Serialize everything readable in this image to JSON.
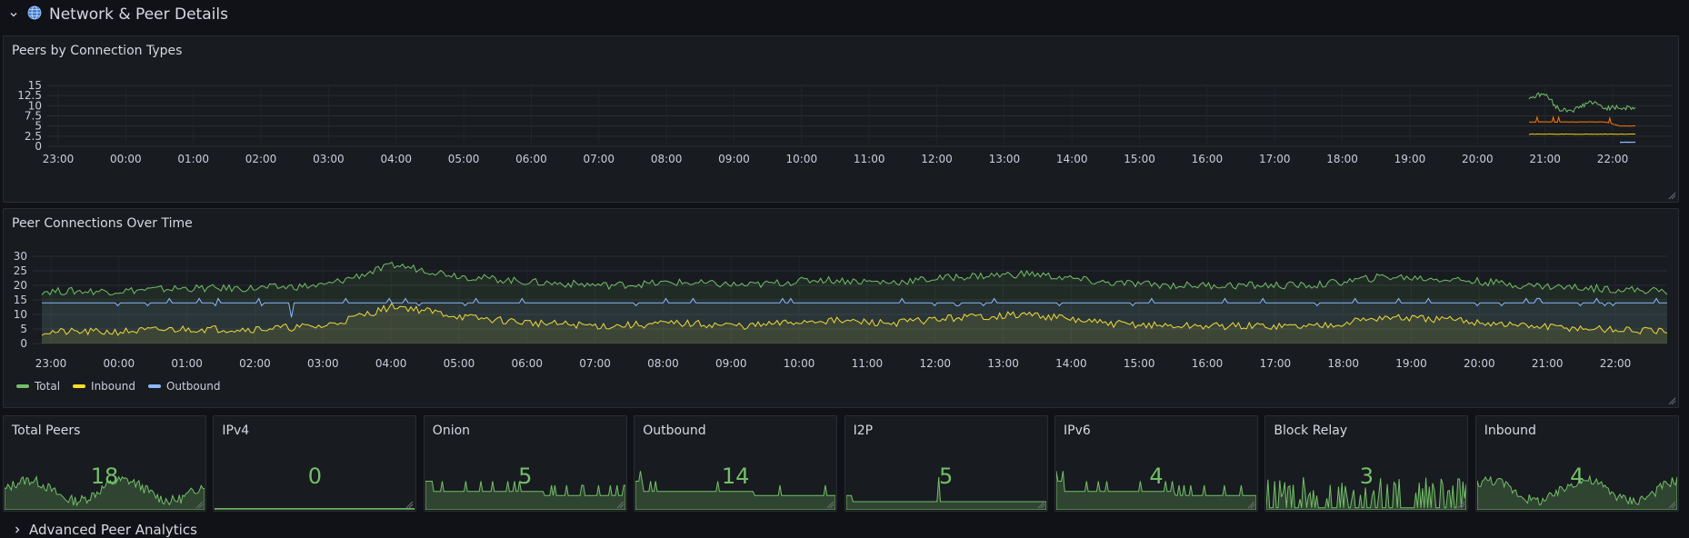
{
  "row": {
    "title": "Network & Peer Details",
    "icon": "globe-icon"
  },
  "next_row": {
    "title": "Advanced Peer Analytics"
  },
  "colors": {
    "green": "#73bf69",
    "yellow": "#fade2a",
    "blue": "#8ab8ff",
    "orange": "#ff780a",
    "gold": "#f2cc0c",
    "bg": "#111217",
    "panel": "#181b1f"
  },
  "panel1": {
    "title": "Peers by Connection Types",
    "y_ticks": [
      "15",
      "12.5",
      "10",
      "7.5",
      "5",
      "2.5",
      "0"
    ],
    "x_ticks": [
      "23:00",
      "00:00",
      "01:00",
      "02:00",
      "03:00",
      "04:00",
      "05:00",
      "06:00",
      "07:00",
      "08:00",
      "09:00",
      "10:00",
      "11:00",
      "12:00",
      "13:00",
      "14:00",
      "15:00",
      "16:00",
      "17:00",
      "18:00",
      "19:00",
      "20:00",
      "21:00",
      "22:00"
    ]
  },
  "panel2": {
    "title": "Peer Connections Over Time",
    "y_ticks": [
      "30",
      "25",
      "20",
      "15",
      "10",
      "5",
      "0"
    ],
    "x_ticks": [
      "23:00",
      "00:00",
      "01:00",
      "02:00",
      "03:00",
      "04:00",
      "05:00",
      "06:00",
      "07:00",
      "08:00",
      "09:00",
      "10:00",
      "11:00",
      "12:00",
      "13:00",
      "14:00",
      "15:00",
      "16:00",
      "17:00",
      "18:00",
      "19:00",
      "20:00",
      "21:00",
      "22:00"
    ],
    "legend": [
      "Total",
      "Inbound",
      "Outbound"
    ]
  },
  "stats": [
    {
      "title": "Total Peers",
      "value": "18",
      "spark": "noisy"
    },
    {
      "title": "IPv4",
      "value": "0",
      "spark": "flat0"
    },
    {
      "title": "Onion",
      "value": "5",
      "spark": "step"
    },
    {
      "title": "Outbound",
      "value": "14",
      "spark": "step"
    },
    {
      "title": "I2P",
      "value": "5",
      "spark": "flatlow"
    },
    {
      "title": "IPv6",
      "value": "4",
      "spark": "step"
    },
    {
      "title": "Block Relay",
      "value": "3",
      "spark": "spiky"
    },
    {
      "title": "Inbound",
      "value": "4",
      "spark": "noisy"
    }
  ],
  "chart_data": [
    {
      "type": "line",
      "title": "Peers by Connection Types",
      "x": [
        "20:45",
        "21:00",
        "21:15",
        "21:30",
        "21:45",
        "22:00",
        "22:15",
        "22:30"
      ],
      "ylim": [
        0,
        15
      ],
      "series": [
        {
          "values": [
            12,
            13,
            9,
            9,
            11,
            9.5,
            9.5,
            9.5
          ]
        },
        {
          "values": [
            6,
            6,
            6,
            6,
            6,
            6,
            5,
            5
          ]
        },
        {
          "values": [
            3,
            3,
            3,
            3,
            3,
            3,
            3,
            3
          ]
        },
        {
          "values": [
            null,
            null,
            null,
            null,
            null,
            null,
            1,
            1
          ]
        }
      ],
      "grid": true
    },
    {
      "type": "line",
      "title": "Peer Connections Over Time",
      "x": [
        "23:00",
        "00:00",
        "01:00",
        "02:00",
        "03:00",
        "04:00",
        "05:00",
        "06:00",
        "07:00",
        "08:00",
        "09:00",
        "10:00",
        "11:00",
        "12:00",
        "13:00",
        "14:00",
        "15:00",
        "16:00",
        "17:00",
        "18:00",
        "19:00",
        "20:00",
        "21:00",
        "22:00"
      ],
      "ylim": [
        0,
        30
      ],
      "series": [
        {
          "name": "Total",
          "values": [
            18,
            18,
            19,
            19,
            20,
            27,
            23,
            21,
            20,
            21,
            20,
            22,
            21,
            23,
            24,
            21,
            20,
            20,
            20,
            23,
            22,
            20,
            19,
            18
          ]
        },
        {
          "name": "Inbound",
          "values": [
            4,
            4,
            5,
            5,
            6,
            13,
            9,
            7,
            6,
            7,
            6,
            8,
            7,
            9,
            10,
            7,
            6,
            6,
            6,
            9,
            8,
            6,
            5,
            4
          ]
        },
        {
          "name": "Outbound",
          "values": [
            14,
            14,
            14,
            14,
            14,
            14,
            14,
            14,
            14,
            14,
            14,
            14,
            14,
            14,
            14,
            14,
            14,
            14,
            14,
            14,
            14,
            14,
            14,
            14
          ]
        }
      ],
      "grid": true,
      "legend": "bottom-left"
    }
  ]
}
